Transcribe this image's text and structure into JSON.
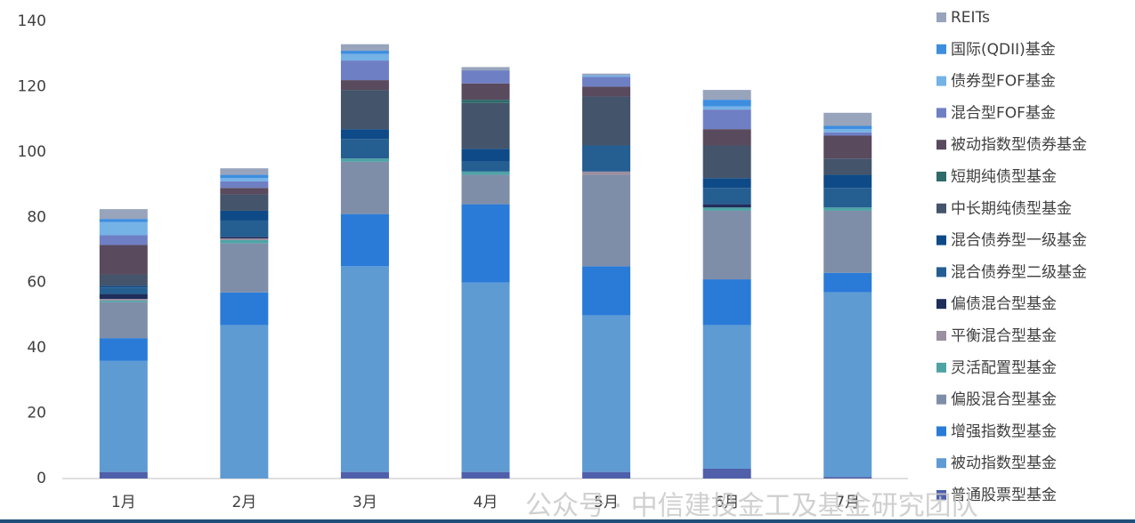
{
  "chart_data": {
    "type": "bar",
    "stacked": true,
    "categories": [
      "1月",
      "2月",
      "3月",
      "4月",
      "5月",
      "6月",
      "7月"
    ],
    "series": [
      {
        "name": "普通股票型基金",
        "color": "#4f5faa",
        "values": [
          2,
          0,
          2,
          2,
          2,
          3,
          0.5
        ]
      },
      {
        "name": "被动指数型基金",
        "color": "#5f9bd3",
        "values": [
          34,
          47,
          63,
          58,
          48,
          44,
          56.5
        ]
      },
      {
        "name": "增强指数型基金",
        "color": "#2a7bd8",
        "values": [
          7,
          10,
          16,
          24,
          15,
          14,
          6
        ]
      },
      {
        "name": "偏股混合型基金",
        "color": "#7f8ea8",
        "values": [
          11,
          15,
          16,
          9,
          28,
          21,
          19
        ]
      },
      {
        "name": "灵活配置型基金",
        "color": "#4fa3a5",
        "values": [
          0.5,
          1,
          1,
          1,
          0,
          1,
          1
        ]
      },
      {
        "name": "平衡混合型基金",
        "color": "#9c8fa0",
        "values": [
          0.5,
          0.5,
          0,
          0,
          1,
          0,
          0
        ]
      },
      {
        "name": "偏债混合型基金",
        "color": "#1f2d5a",
        "values": [
          1.5,
          0.5,
          0,
          0,
          0,
          1,
          0
        ]
      },
      {
        "name": "混合债券型二级基金",
        "color": "#255e91",
        "values": [
          2,
          5,
          6,
          3,
          8,
          5,
          6
        ]
      },
      {
        "name": "混合债券型一级基金",
        "color": "#0e4a87",
        "values": [
          0.5,
          3,
          3,
          4,
          0,
          3,
          4
        ]
      },
      {
        "name": "中长期纯债型基金",
        "color": "#44546a",
        "values": [
          3.5,
          5,
          12,
          14,
          15,
          10,
          5
        ]
      },
      {
        "name": "短期纯债型基金",
        "color": "#2e6b6b",
        "values": [
          0,
          0,
          0,
          1,
          0,
          0,
          0
        ]
      },
      {
        "name": "被动指数型债券基金",
        "color": "#5a4a5e",
        "values": [
          9,
          2,
          3,
          5,
          3,
          5,
          7
        ]
      },
      {
        "name": "混合型FOF基金",
        "color": "#6f7fc4",
        "values": [
          3,
          2,
          6,
          4,
          3,
          6,
          1
        ]
      },
      {
        "name": "债券型FOF基金",
        "color": "#75b2e6",
        "values": [
          4,
          1,
          2,
          0,
          0.5,
          1,
          1
        ]
      },
      {
        "name": "国际(QDII)基金",
        "color": "#3e8ee0",
        "values": [
          1,
          1,
          1,
          0,
          0,
          2,
          1
        ]
      },
      {
        "name": "REITs",
        "color": "#98a4bc",
        "values": [
          3,
          2,
          2,
          1,
          0.5,
          3,
          4
        ]
      }
    ],
    "ylim": [
      0,
      140
    ],
    "yticks": [
      0,
      20,
      40,
      60,
      80,
      100,
      120,
      140
    ],
    "watermark": "公众号 · 中信建投金工及基金研究团队"
  }
}
